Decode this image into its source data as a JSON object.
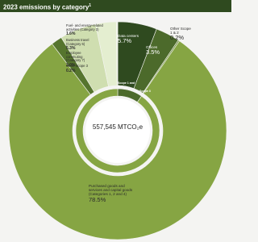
{
  "title": "2023 emissions by category",
  "title_note": "1",
  "chart_data": {
    "type": "pie",
    "categories": [
      "Data centers",
      "Offices",
      "Other Scope 1 & 2",
      "Purchased goods and services and capital goods (Categories 1, 2 and 4)",
      "Fuel- and energy-related activities (Category 3)",
      "Business travel (Category 6)",
      "Employee commuting (Category 7)",
      "Other Scope 3"
    ],
    "values": [
      5.7,
      3.5,
      0.2,
      78.5,
      1.6,
      5.3,
      3.0,
      0.2
    ],
    "value_labels": [
      "5.7%",
      "3.5%",
      "0.2%",
      "78.5%",
      "1.6%",
      "5.3%",
      "3.0%",
      "0.2%"
    ],
    "colors": [
      "#2f4a1f",
      "#4c6a2b",
      "#6f8d3a",
      "#86a543",
      "#56752e",
      "#cfdeb0",
      "#e4eed0",
      "#f1f6e6"
    ],
    "inner_ring": {
      "categories": [
        "Scope 1 and 2",
        "Scope 3"
      ],
      "values": [
        9.4,
        88.6
      ],
      "colors": [
        "#4c6a2b",
        "#86a543"
      ]
    },
    "center_label": "557,545 MTCO₂e"
  }
}
